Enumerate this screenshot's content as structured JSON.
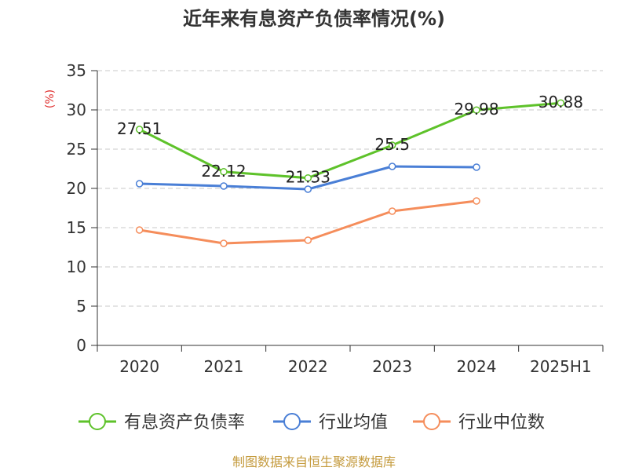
{
  "chart_data": {
    "type": "line",
    "title": "近年来有息资产负债率情况(%)",
    "ylabel": "(%)",
    "categories": [
      "2020",
      "2021",
      "2022",
      "2023",
      "2024",
      "2025H1"
    ],
    "ylim": [
      0,
      35
    ],
    "yticks": [
      0,
      5,
      10,
      15,
      20,
      25,
      30,
      35
    ],
    "grid": true,
    "legend_position": "bottom",
    "series": [
      {
        "name": "有息资产负债率",
        "color": "#5ec22a",
        "values": [
          27.51,
          22.12,
          21.33,
          25.5,
          29.98,
          30.88
        ],
        "labels": [
          "27.51",
          "22.12",
          "21.33",
          "25.5",
          "29.98",
          "30.88"
        ]
      },
      {
        "name": "行业均值",
        "color": "#4a7fd6",
        "values": [
          20.6,
          20.3,
          19.9,
          22.8,
          22.7,
          null
        ]
      },
      {
        "name": "行业中位数",
        "color": "#f58d5b",
        "values": [
          14.7,
          13.0,
          13.4,
          17.1,
          18.4,
          null
        ]
      }
    ]
  },
  "footer": {
    "source": "制图数据来自恒生聚源数据库"
  }
}
